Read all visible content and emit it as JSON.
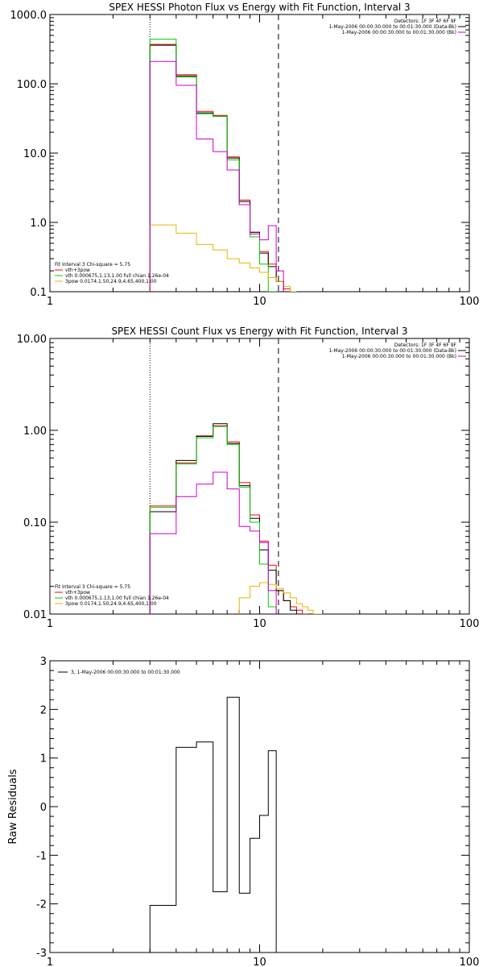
{
  "colors": {
    "black": "#000000",
    "red": "#ff0000",
    "green": "#00cc00",
    "magenta": "#cc00cc",
    "orange": "#e6b800"
  },
  "chart_data": [
    {
      "type": "line",
      "title": "SPEX HESSI Photon Flux vs Energy with Fit Function, Interval 3",
      "x_scale": "log",
      "y_scale": "log",
      "xlim": [
        1,
        100
      ],
      "ylim": [
        0.1,
        1000
      ],
      "x_ticks": [
        "1",
        "10",
        "100"
      ],
      "y_ticks": [
        "0.1",
        "1.0",
        "10.0",
        "100.0",
        "1000.0"
      ],
      "x_tick_values": [
        1,
        10,
        100
      ],
      "y_tick_values": [
        0.1,
        1,
        10,
        100,
        1000
      ],
      "vlines": [
        {
          "x": 3.0,
          "style": "dotted"
        },
        {
          "x": 12.3,
          "style": "dashed"
        }
      ],
      "legend_top": [
        {
          "text": "Detectors: 1F 3F 4F 6F 9F",
          "color": "#000000"
        },
        {
          "text": "1-May-2006 00:00:30.000 to 00:01:30.000 (Data-Bk)",
          "color": "#000000"
        },
        {
          "text": "1-May-2006 00:00:30.000 to 00:01:30.000 (Bk)",
          "color": "#cc00cc"
        }
      ],
      "legend_bottom": [
        {
          "text": "Fit Interval 3   Chi-square = 5.75",
          "color": "#000000"
        },
        {
          "text": "vth+3pow",
          "color": "#ff0000"
        },
        {
          "text": "vth 0.000675,1.13,1.00   full chian 1.26e-04",
          "color": "#00cc00"
        },
        {
          "text": "3pow 0.0174,1.50,24.9,4.65,400,1.00",
          "color": "#e6b800"
        }
      ],
      "edges": [
        3.0,
        4.0,
        5.0,
        6.0,
        7.0,
        8.0,
        9.0,
        10.0,
        11.0,
        12.0,
        13.0,
        14.0,
        15.0
      ],
      "series": [
        {
          "name": "vth+3pow",
          "color": "#ff0000",
          "values": [
            370,
            135,
            40,
            35,
            8.8,
            2.1,
            0.72,
            0.38,
            0.25,
            0.14,
            0.11,
            null
          ]
        },
        {
          "name": "Data-Bk",
          "color": "#000000",
          "values": [
            360,
            130,
            38,
            34,
            8.5,
            2.0,
            0.72,
            0.36,
            0.23,
            0.14,
            0.1,
            null
          ]
        },
        {
          "name": "vth",
          "color": "#00cc00",
          "values": [
            440,
            125,
            37,
            34,
            8.0,
            1.8,
            0.62,
            0.25,
            0.1,
            null,
            null,
            null
          ]
        },
        {
          "name": "3pow",
          "color": "#e6b800",
          "values": [
            0.92,
            0.7,
            0.48,
            0.4,
            0.3,
            0.26,
            0.22,
            0.19,
            0.16,
            0.14,
            0.12,
            0.1
          ]
        },
        {
          "name": "Bk",
          "color": "#cc00cc",
          "values": [
            210,
            95,
            16,
            10.5,
            5.7,
            1.8,
            0.68,
            0.56,
            0.9,
            0.2,
            null,
            null
          ]
        }
      ]
    },
    {
      "type": "line",
      "title": "SPEX HESSI Count Flux vs Energy with Fit Function, Interval 3",
      "x_scale": "log",
      "y_scale": "log",
      "xlim": [
        1,
        100
      ],
      "ylim": [
        0.01,
        10
      ],
      "x_ticks": [
        "1",
        "10",
        "100"
      ],
      "y_ticks": [
        "0.01",
        "0.10",
        "1.00",
        "10.00"
      ],
      "x_tick_values": [
        1,
        10,
        100
      ],
      "y_tick_values": [
        0.01,
        0.1,
        1,
        10
      ],
      "vlines": [
        {
          "x": 3.0,
          "style": "dotted"
        },
        {
          "x": 12.3,
          "style": "dashed"
        }
      ],
      "legend_top": [
        {
          "text": "Detectors: 1F 3F 4F 6F 9F",
          "color": "#000000"
        },
        {
          "text": "1-May-2006 00:00:30.000 to 00:01:30.000 (Data-Bk)",
          "color": "#000000"
        },
        {
          "text": "1-May-2006 00:00:30.000 to 00:01:30.000 (Bk)",
          "color": "#cc00cc"
        }
      ],
      "legend_bottom": [
        {
          "text": "Fit Interval 3   Chi-square = 5.75",
          "color": "#000000"
        },
        {
          "text": "vth+3pow",
          "color": "#ff0000"
        },
        {
          "text": "vth 0.000675,1.13,1.00   full chian 1.26e-04",
          "color": "#00cc00"
        },
        {
          "text": "3pow 0.0174,1.50,24.9,4.65,400,1.00",
          "color": "#e6b800"
        }
      ],
      "edges": [
        3.0,
        4.0,
        5.0,
        6.0,
        7.0,
        8.0,
        9.0,
        10.0,
        11.0,
        12.0,
        13.0,
        14.0,
        15.0,
        16.0,
        17.0,
        18.0,
        20.0
      ],
      "series": [
        {
          "name": "vth+3pow",
          "color": "#ff0000",
          "values": [
            0.15,
            0.44,
            0.87,
            1.12,
            0.75,
            0.27,
            0.12,
            0.062,
            0.034,
            0.018,
            0.014,
            0.012,
            0.011,
            0.01,
            null,
            null
          ]
        },
        {
          "name": "Data-Bk",
          "color": "#000000",
          "values": [
            0.13,
            0.47,
            0.86,
            1.18,
            0.72,
            0.25,
            0.11,
            0.05,
            0.03,
            0.018,
            0.014,
            0.011,
            null,
            null,
            null,
            null
          ]
        },
        {
          "name": "vth",
          "color": "#00cc00",
          "values": [
            0.145,
            0.43,
            0.83,
            1.1,
            0.7,
            0.24,
            0.1,
            0.035,
            0.012,
            null,
            null,
            null,
            null,
            null,
            null,
            null
          ]
        },
        {
          "name": "3pow",
          "color": "#e6b800",
          "values": [
            null,
            null,
            null,
            null,
            null,
            0.015,
            0.02,
            0.022,
            0.021,
            0.019,
            0.017,
            0.015,
            0.013,
            0.012,
            0.011,
            0.01
          ]
        },
        {
          "name": "Bk",
          "color": "#cc00cc",
          "values": [
            0.075,
            0.19,
            0.26,
            0.35,
            0.23,
            0.09,
            0.08,
            0.06,
            0.018,
            null,
            null,
            null,
            null,
            null,
            null,
            null
          ]
        }
      ]
    },
    {
      "type": "line",
      "title": "",
      "ylabel": "Raw Residuals",
      "x_scale": "log",
      "y_scale": "linear",
      "xlim": [
        1,
        100
      ],
      "ylim": [
        -3,
        3
      ],
      "x_ticks": [
        "1",
        "10",
        "100"
      ],
      "y_ticks": [
        "-3",
        "-2",
        "-1",
        "0",
        "1",
        "2",
        "3"
      ],
      "x_tick_values": [
        1,
        10,
        100
      ],
      "y_tick_values": [
        -3,
        -2,
        -1,
        0,
        1,
        2,
        3
      ],
      "legend_top": [
        {
          "text": "3,  1-May-2006 00:00:30.000 to 00:01:30.000",
          "color": "#000000"
        }
      ],
      "edges": [
        3.0,
        4.0,
        5.0,
        6.0,
        7.0,
        8.0,
        9.0,
        10.0,
        11.0,
        12.0
      ],
      "series": [
        {
          "name": "residuals",
          "color": "#000000",
          "values": [
            -2.03,
            1.22,
            1.33,
            -1.75,
            2.25,
            -1.78,
            -0.65,
            -0.18,
            1.15
          ]
        }
      ]
    }
  ]
}
